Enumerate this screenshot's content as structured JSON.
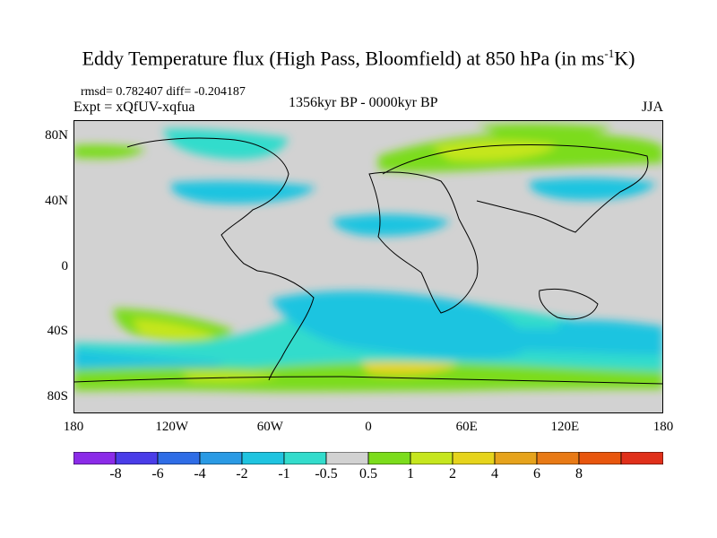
{
  "header": {
    "title": "Eddy Temperature flux (High Pass, Bloomfield) at 850 hPa (in ms",
    "title_sup": "-1",
    "title_end": "K)",
    "stats": "rmsd= 0.782407 diff= -0.204187",
    "experiment": "Expt = xQfUV-xqfua",
    "period": "1356kyr BP - 0000kyr BP",
    "season": "JJA"
  },
  "map": {
    "lat_labels": [
      "80N",
      "40N",
      "0",
      "40S",
      "80S"
    ],
    "lon_labels": [
      "180",
      "120W",
      "60W",
      "0",
      "60E",
      "120E",
      "180"
    ],
    "lat_values": [
      80,
      40,
      0,
      -40,
      -80
    ],
    "lon_values": [
      -180,
      -120,
      -60,
      0,
      60,
      120,
      180
    ],
    "extent": {
      "lon": [
        -180,
        180
      ],
      "lat": [
        -90,
        90
      ]
    },
    "background_color": "#d2d2d2"
  },
  "colorbar": {
    "colors": [
      "#8b2be8",
      "#4a3de8",
      "#2f6de6",
      "#2a9ae4",
      "#1fc4e0",
      "#33dccc",
      "#d2d2d2",
      "#7cdc1c",
      "#c6e61e",
      "#e6d41c",
      "#e6a31c",
      "#e87a16",
      "#e8560e",
      "#e0301a"
    ],
    "labels": [
      "-8",
      "-6",
      "-4",
      "-2",
      "-1",
      "-0.5",
      "0.5",
      "1",
      "2",
      "4",
      "6",
      "8"
    ]
  }
}
